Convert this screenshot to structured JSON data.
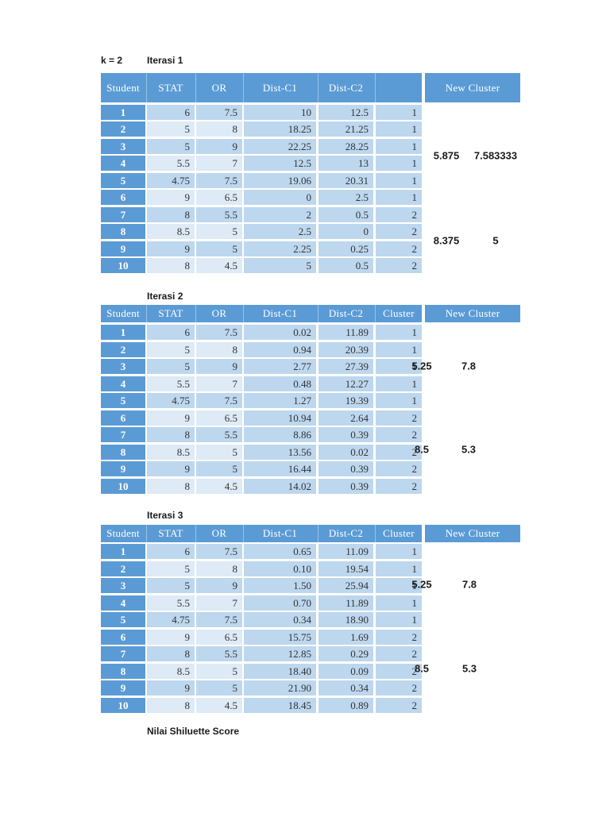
{
  "labels": {
    "k": "k = 2",
    "footer": "Nilai Shiluette Score"
  },
  "new_cluster_header": "New Cluster",
  "colors": {
    "header_blue": "#5b9bd5",
    "row_mid_blue": "#bdd7ee",
    "row_light_blue": "#deeaf6",
    "text_dark": "#333333",
    "text_white": "#ffffff",
    "page_bg": "#ffffff"
  },
  "iterations": [
    {
      "label": "Iterasi 1",
      "columns": [
        "Student",
        "STAT",
        "OR",
        "Dist-C1",
        "Dist-C2",
        ""
      ],
      "rows": [
        [
          "1",
          "6",
          "7.5",
          "10",
          "12.5",
          "1"
        ],
        [
          "2",
          "5",
          "8",
          "18.25",
          "21.25",
          "1"
        ],
        [
          "3",
          "5",
          "9",
          "22.25",
          "28.25",
          "1"
        ],
        [
          "4",
          "5.5",
          "7",
          "12.5",
          "13",
          "1"
        ],
        [
          "5",
          "4.75",
          "7.5",
          "19.06",
          "20.31",
          "1"
        ],
        [
          "6",
          "9",
          "6.5",
          "0",
          "2.5",
          "1"
        ],
        [
          "7",
          "8",
          "5.5",
          "2",
          "0.5",
          "2"
        ],
        [
          "8",
          "8.5",
          "5",
          "2.5",
          "0",
          "2"
        ],
        [
          "9",
          "9",
          "5",
          "2.25",
          "0.25",
          "2"
        ],
        [
          "10",
          "8",
          "4.5",
          "5",
          "0.5",
          "2"
        ]
      ],
      "new_cluster": [
        [
          "5.875",
          "7.583333"
        ],
        [
          "8.375",
          "5"
        ]
      ]
    },
    {
      "label": "Iterasi 2",
      "columns": [
        "Student",
        "STAT",
        "OR",
        "Dist-C1",
        "Dist-C2",
        "Cluster"
      ],
      "rows": [
        [
          "1",
          "6",
          "7.5",
          "0.02",
          "11.89",
          "1"
        ],
        [
          "2",
          "5",
          "8",
          "0.94",
          "20.39",
          "1"
        ],
        [
          "3",
          "5",
          "9",
          "2.77",
          "27.39",
          "1"
        ],
        [
          "4",
          "5.5",
          "7",
          "0.48",
          "12.27",
          "1"
        ],
        [
          "5",
          "4.75",
          "7.5",
          "1.27",
          "19.39",
          "1"
        ],
        [
          "6",
          "9",
          "6.5",
          "10.94",
          "2.64",
          "2"
        ],
        [
          "7",
          "8",
          "5.5",
          "8.86",
          "0.39",
          "2"
        ],
        [
          "8",
          "8.5",
          "5",
          "13.56",
          "0.02",
          "2"
        ],
        [
          "9",
          "9",
          "5",
          "16.44",
          "0.39",
          "2"
        ],
        [
          "10",
          "8",
          "4.5",
          "14.02",
          "0.39",
          "2"
        ]
      ],
      "new_cluster": [
        [
          "5.25",
          "7.8"
        ],
        [
          "8.5",
          "5.3"
        ]
      ]
    },
    {
      "label": "Iterasi 3",
      "columns": [
        "Student",
        "STAT",
        "OR",
        "Dist-C1",
        "Dist-C2",
        "Cluster"
      ],
      "rows": [
        [
          "1",
          "6",
          "7.5",
          "0.65",
          "11.09",
          "1"
        ],
        [
          "2",
          "5",
          "8",
          "0.10",
          "19.54",
          "1"
        ],
        [
          "3",
          "5",
          "9",
          "1.50",
          "25.94",
          "1"
        ],
        [
          "4",
          "5.5",
          "7",
          "0.70",
          "11.89",
          "1"
        ],
        [
          "5",
          "4.75",
          "7.5",
          "0.34",
          "18.90",
          "1"
        ],
        [
          "6",
          "9",
          "6.5",
          "15.75",
          "1.69",
          "2"
        ],
        [
          "7",
          "8",
          "5.5",
          "12.85",
          "0.29",
          "2"
        ],
        [
          "8",
          "8.5",
          "5",
          "18.40",
          "0.09",
          "2"
        ],
        [
          "9",
          "9",
          "5",
          "21.90",
          "0.34",
          "2"
        ],
        [
          "10",
          "8",
          "4.5",
          "18.45",
          "0.89",
          "2"
        ]
      ],
      "new_cluster": [
        [
          "5.25",
          "7.8"
        ],
        [
          "8.5",
          "5.3"
        ]
      ]
    }
  ]
}
